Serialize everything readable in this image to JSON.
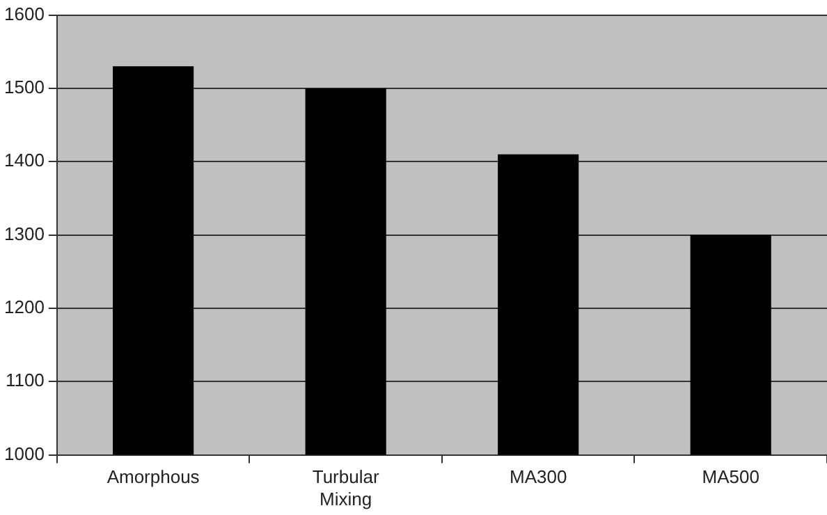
{
  "chart_data": {
    "type": "bar",
    "categories": [
      "Amorphous",
      "Turbular Mixing",
      "MA300",
      "MA500"
    ],
    "values": [
      1530,
      1500,
      1410,
      1300
    ],
    "color": "#000000",
    "ylim": [
      1000,
      1600
    ],
    "yticks": [
      1000,
      1100,
      1200,
      1300,
      1400,
      1500,
      1600
    ],
    "grid": "y",
    "legend": false
  }
}
